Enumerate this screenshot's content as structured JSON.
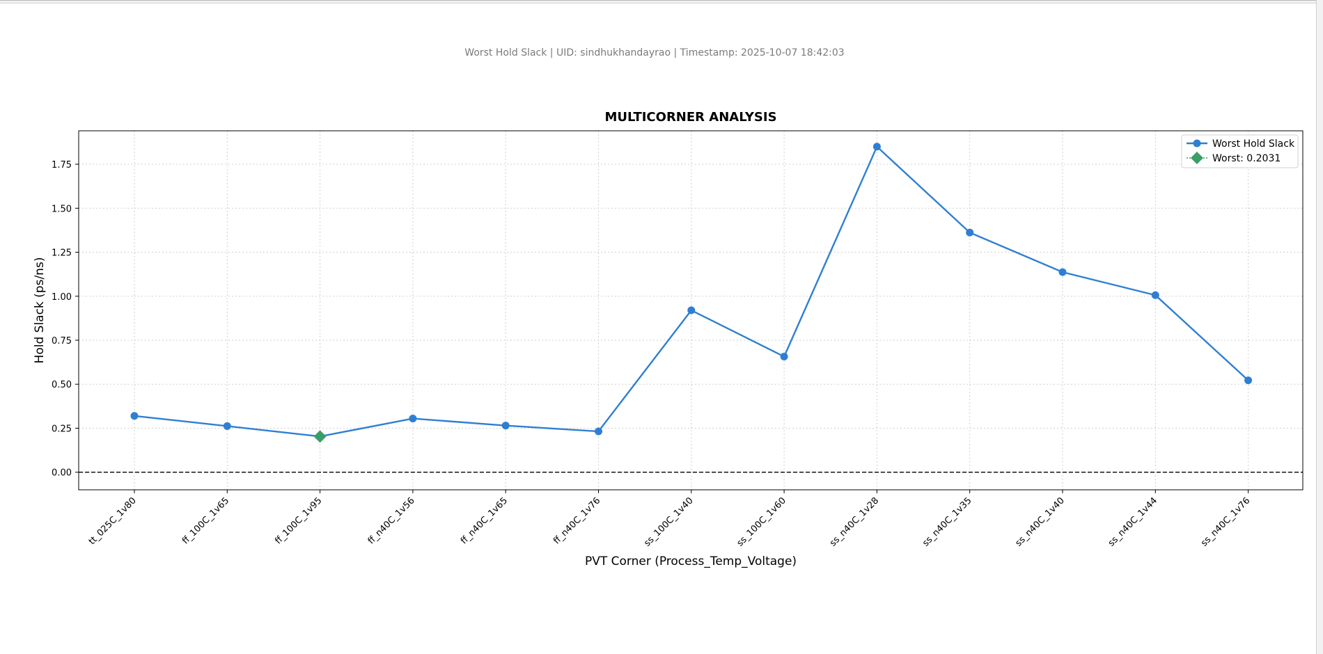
{
  "header": {
    "subtitle": "Worst Hold Slack | UID: sindhukhandayrao | Timestamp: 2025-10-07 18:42:03"
  },
  "chart_data": {
    "type": "line",
    "title": "MULTICORNER ANALYSIS",
    "xlabel": "PVT Corner (Process_Temp_Voltage)",
    "ylabel": "Hold Slack (ps/ns)",
    "categories": [
      "tt_025C_1v80",
      "ff_100C_1v65",
      "ff_100C_1v95",
      "ff_n40C_1v56",
      "ff_n40C_1v65",
      "ff_n40C_1v76",
      "ss_100C_1v40",
      "ss_100C_1v60",
      "ss_n40C_1v28",
      "ss_n40C_1v35",
      "ss_n40C_1v40",
      "ss_n40C_1v44",
      "ss_n40C_1v76"
    ],
    "series": [
      {
        "name": "Worst Hold Slack",
        "color": "#2e7fd2",
        "values": [
          0.32,
          0.262,
          0.2031,
          0.305,
          0.265,
          0.232,
          0.92,
          0.657,
          1.85,
          1.362,
          1.137,
          1.006,
          0.522
        ]
      }
    ],
    "worst": {
      "label": "Worst: 0.2031",
      "category": "ff_100C_1v95",
      "value": 0.2031,
      "color": "#3a9e66",
      "marker": "diamond"
    },
    "yticks": [
      "0.00",
      "0.25",
      "0.50",
      "0.75",
      "1.00",
      "1.25",
      "1.50",
      "1.75"
    ],
    "ylim": [
      -0.1,
      1.94
    ],
    "reference_line": {
      "y": 0,
      "style": "dashed",
      "color": "#000000"
    },
    "grid": true,
    "legend": {
      "position": "top-right",
      "entries": [
        "Worst Hold Slack",
        "Worst: 0.2031"
      ]
    }
  }
}
